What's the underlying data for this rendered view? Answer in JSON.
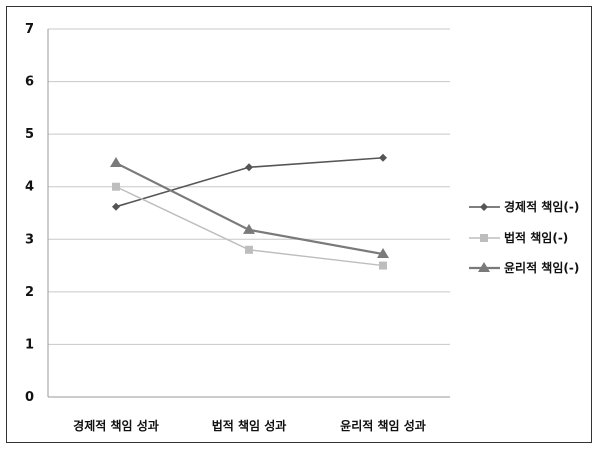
{
  "chart_data": {
    "type": "line",
    "categories": [
      "경제적 책임 성과",
      "법적 책임 성과",
      "윤리적 책임 성과"
    ],
    "ylim": [
      0,
      7
    ],
    "yticks": [
      0,
      1,
      2,
      3,
      4,
      5,
      6,
      7
    ],
    "grid": "horizontal",
    "legend_position": "right",
    "series": [
      {
        "name": "경제적 책임(-)",
        "values": [
          3.62,
          4.37,
          4.55
        ],
        "color": "#555555",
        "marker": "diamond"
      },
      {
        "name": "법적 책임(-)",
        "values": [
          4.0,
          2.8,
          2.5
        ],
        "color": "#bdbdbd",
        "marker": "square"
      },
      {
        "name": "윤리적 책임(-)",
        "values": [
          4.45,
          3.18,
          2.72
        ],
        "color": "#7a7a7a",
        "marker": "triangle"
      }
    ]
  }
}
